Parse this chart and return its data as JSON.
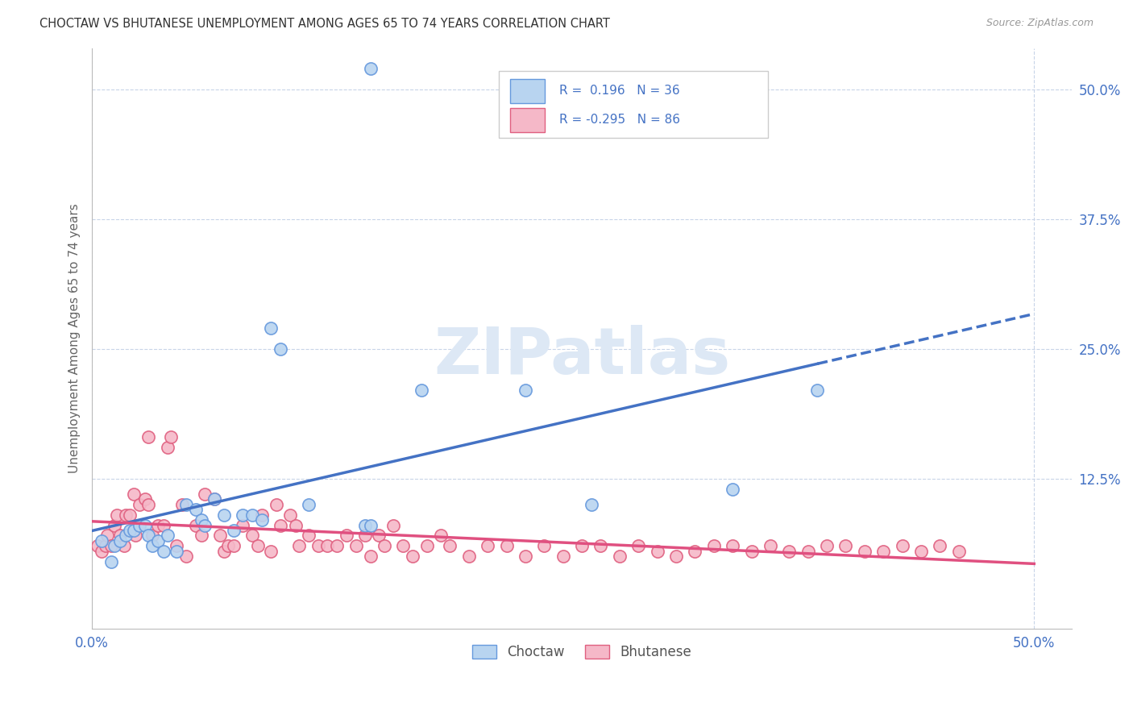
{
  "title": "CHOCTAW VS BHUTANESE UNEMPLOYMENT AMONG AGES 65 TO 74 YEARS CORRELATION CHART",
  "source": "Source: ZipAtlas.com",
  "ylabel": "Unemployment Among Ages 65 to 74 years",
  "ylabel_ticks": [
    "50.0%",
    "37.5%",
    "25.0%",
    "12.5%"
  ],
  "ytick_positions": [
    0.5,
    0.375,
    0.25,
    0.125
  ],
  "xtick_labels": [
    "0.0%",
    "50.0%"
  ],
  "xtick_positions": [
    0.0,
    0.5
  ],
  "xlim": [
    0.0,
    0.52
  ],
  "ylim": [
    -0.02,
    0.54
  ],
  "choctaw_R": 0.196,
  "choctaw_N": 36,
  "bhutanese_R": -0.295,
  "bhutanese_N": 86,
  "choctaw_dot_color": "#b8d4f0",
  "choctaw_edge_color": "#6699dd",
  "bhutanese_dot_color": "#f5b8c8",
  "bhutanese_edge_color": "#e06080",
  "choctaw_line_color": "#4472c4",
  "bhutanese_line_color": "#e05080",
  "watermark_text": "ZIPatlas",
  "watermark_color": "#dde8f5",
  "background_color": "#ffffff",
  "grid_color": "#c8d4e8",
  "choctaw_scatter_x": [
    0.005,
    0.01,
    0.012,
    0.015,
    0.018,
    0.02,
    0.022,
    0.025,
    0.028,
    0.03,
    0.032,
    0.035,
    0.038,
    0.04,
    0.045,
    0.05,
    0.055,
    0.058,
    0.06,
    0.065,
    0.07,
    0.075,
    0.08,
    0.085,
    0.09,
    0.095,
    0.1,
    0.115,
    0.145,
    0.148,
    0.175,
    0.23,
    0.265,
    0.385,
    0.148,
    0.34
  ],
  "choctaw_scatter_y": [
    0.065,
    0.045,
    0.06,
    0.065,
    0.07,
    0.075,
    0.075,
    0.08,
    0.08,
    0.07,
    0.06,
    0.065,
    0.055,
    0.07,
    0.055,
    0.1,
    0.095,
    0.085,
    0.08,
    0.105,
    0.09,
    0.075,
    0.09,
    0.09,
    0.085,
    0.27,
    0.25,
    0.1,
    0.08,
    0.08,
    0.21,
    0.21,
    0.1,
    0.21,
    0.52,
    0.115
  ],
  "bhutanese_scatter_x": [
    0.003,
    0.005,
    0.007,
    0.008,
    0.01,
    0.012,
    0.013,
    0.015,
    0.017,
    0.018,
    0.02,
    0.022,
    0.023,
    0.025,
    0.028,
    0.03,
    0.03,
    0.032,
    0.035,
    0.038,
    0.04,
    0.042,
    0.045,
    0.048,
    0.05,
    0.055,
    0.058,
    0.06,
    0.065,
    0.068,
    0.07,
    0.072,
    0.075,
    0.08,
    0.085,
    0.088,
    0.09,
    0.095,
    0.098,
    0.1,
    0.105,
    0.108,
    0.11,
    0.115,
    0.12,
    0.125,
    0.13,
    0.135,
    0.14,
    0.145,
    0.148,
    0.152,
    0.155,
    0.16,
    0.165,
    0.17,
    0.178,
    0.185,
    0.19,
    0.2,
    0.21,
    0.22,
    0.23,
    0.24,
    0.25,
    0.26,
    0.27,
    0.28,
    0.29,
    0.3,
    0.31,
    0.32,
    0.33,
    0.34,
    0.35,
    0.36,
    0.37,
    0.38,
    0.39,
    0.4,
    0.41,
    0.42,
    0.43,
    0.44,
    0.45,
    0.46
  ],
  "bhutanese_scatter_y": [
    0.06,
    0.055,
    0.06,
    0.07,
    0.06,
    0.08,
    0.09,
    0.07,
    0.06,
    0.09,
    0.09,
    0.11,
    0.07,
    0.1,
    0.105,
    0.1,
    0.165,
    0.07,
    0.08,
    0.08,
    0.155,
    0.165,
    0.06,
    0.1,
    0.05,
    0.08,
    0.07,
    0.11,
    0.105,
    0.07,
    0.055,
    0.06,
    0.06,
    0.08,
    0.07,
    0.06,
    0.09,
    0.055,
    0.1,
    0.08,
    0.09,
    0.08,
    0.06,
    0.07,
    0.06,
    0.06,
    0.06,
    0.07,
    0.06,
    0.07,
    0.05,
    0.07,
    0.06,
    0.08,
    0.06,
    0.05,
    0.06,
    0.07,
    0.06,
    0.05,
    0.06,
    0.06,
    0.05,
    0.06,
    0.05,
    0.06,
    0.06,
    0.05,
    0.06,
    0.055,
    0.05,
    0.055,
    0.06,
    0.06,
    0.055,
    0.06,
    0.055,
    0.055,
    0.06,
    0.06,
    0.055,
    0.055,
    0.06,
    0.055,
    0.06,
    0.055
  ],
  "legend_R1_text": "R =  0.196   N = 36",
  "legend_R2_text": "R = -0.295   N = 86",
  "choctaw_label": "Choctaw",
  "bhutanese_label": "Bhutanese"
}
